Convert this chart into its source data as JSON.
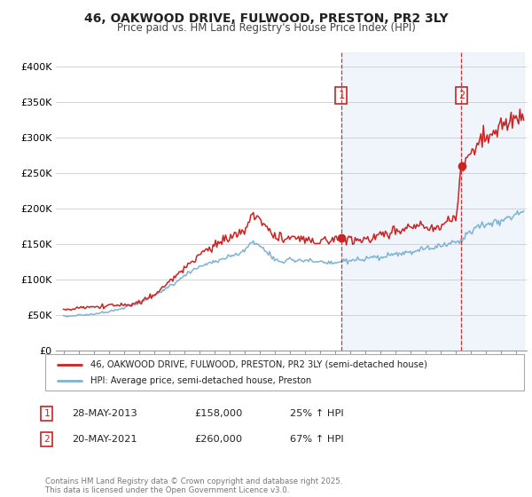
{
  "title1": "46, OAKWOOD DRIVE, FULWOOD, PRESTON, PR2 3LY",
  "title2": "Price paid vs. HM Land Registry's House Price Index (HPI)",
  "legend_line1": "46, OAKWOOD DRIVE, FULWOOD, PRESTON, PR2 3LY (semi-detached house)",
  "legend_line2": "HPI: Average price, semi-detached house, Preston",
  "transaction1_date": "28-MAY-2013",
  "transaction1_price": 158000,
  "transaction1_price_str": "£158,000",
  "transaction1_hpi": "25% ↑ HPI",
  "transaction1_year": 2013.41,
  "transaction1_value": 158000,
  "transaction2_date": "20-MAY-2021",
  "transaction2_price": 260000,
  "transaction2_price_str": "£260,000",
  "transaction2_hpi": "67% ↑ HPI",
  "transaction2_year": 2021.38,
  "transaction2_value": 260000,
  "footnote": "Contains HM Land Registry data © Crown copyright and database right 2025.\nThis data is licensed under the Open Government Licence v3.0.",
  "line_color_property": "#cc2222",
  "line_color_hpi": "#7fb3d3",
  "vline_color": "#cc2222",
  "shade_color": "#ddeeff",
  "ylim_max": 420000,
  "ytick_values": [
    0,
    50000,
    100000,
    150000,
    200000,
    250000,
    300000,
    350000,
    400000
  ],
  "ytick_labels": [
    "£0",
    "£50K",
    "£100K",
    "£150K",
    "£200K",
    "£250K",
    "£300K",
    "£350K",
    "£400K"
  ],
  "hpi_keypoints": [
    [
      1995.0,
      48000
    ],
    [
      1996.0,
      49500
    ],
    [
      1997.0,
      51000
    ],
    [
      1998.0,
      55000
    ],
    [
      1999.0,
      60000
    ],
    [
      2000.0,
      67000
    ],
    [
      2001.0,
      76000
    ],
    [
      2002.0,
      90000
    ],
    [
      2003.0,
      105000
    ],
    [
      2004.0,
      118000
    ],
    [
      2005.0,
      125000
    ],
    [
      2006.0,
      132000
    ],
    [
      2007.0,
      140000
    ],
    [
      2007.5,
      153000
    ],
    [
      2008.0,
      148000
    ],
    [
      2009.0,
      128000
    ],
    [
      2009.5,
      125000
    ],
    [
      2010.0,
      128000
    ],
    [
      2011.0,
      127000
    ],
    [
      2012.0,
      124000
    ],
    [
      2013.0,
      122000
    ],
    [
      2013.41,
      126000
    ],
    [
      2014.0,
      126000
    ],
    [
      2015.0,
      128000
    ],
    [
      2016.0,
      131000
    ],
    [
      2017.0,
      135000
    ],
    [
      2018.0,
      138000
    ],
    [
      2019.0,
      143000
    ],
    [
      2020.0,
      148000
    ],
    [
      2020.5,
      150000
    ],
    [
      2021.0,
      153000
    ],
    [
      2021.38,
      156000
    ],
    [
      2022.0,
      168000
    ],
    [
      2022.5,
      175000
    ],
    [
      2023.0,
      178000
    ],
    [
      2023.5,
      180000
    ],
    [
      2024.0,
      183000
    ],
    [
      2024.5,
      187000
    ],
    [
      2025.0,
      192000
    ],
    [
      2025.4,
      195000
    ]
  ],
  "prop_keypoints": [
    [
      1995.0,
      58000
    ],
    [
      1996.0,
      59000
    ],
    [
      1997.0,
      61000
    ],
    [
      1998.0,
      63000
    ],
    [
      1999.0,
      64000
    ],
    [
      2000.0,
      68000
    ],
    [
      2001.0,
      78000
    ],
    [
      2002.0,
      96000
    ],
    [
      2003.0,
      115000
    ],
    [
      2004.0,
      133000
    ],
    [
      2005.0,
      148000
    ],
    [
      2006.0,
      158000
    ],
    [
      2007.0,
      168000
    ],
    [
      2007.5,
      192000
    ],
    [
      2008.0,
      182000
    ],
    [
      2009.0,
      162000
    ],
    [
      2009.5,
      158000
    ],
    [
      2010.0,
      160000
    ],
    [
      2011.0,
      157000
    ],
    [
      2012.0,
      153000
    ],
    [
      2013.0,
      155000
    ],
    [
      2013.41,
      158000
    ],
    [
      2014.0,
      155000
    ],
    [
      2014.5,
      153000
    ],
    [
      2015.0,
      157000
    ],
    [
      2015.5,
      158000
    ],
    [
      2016.0,
      162000
    ],
    [
      2016.5,
      165000
    ],
    [
      2017.0,
      167000
    ],
    [
      2017.5,
      170000
    ],
    [
      2018.0,
      172000
    ],
    [
      2018.5,
      175000
    ],
    [
      2019.0,
      173000
    ],
    [
      2019.5,
      172000
    ],
    [
      2020.0,
      175000
    ],
    [
      2020.5,
      180000
    ],
    [
      2021.0,
      185000
    ],
    [
      2021.38,
      260000
    ],
    [
      2022.0,
      280000
    ],
    [
      2022.5,
      292000
    ],
    [
      2023.0,
      298000
    ],
    [
      2023.5,
      308000
    ],
    [
      2024.0,
      315000
    ],
    [
      2024.5,
      322000
    ],
    [
      2025.0,
      328000
    ],
    [
      2025.4,
      332000
    ]
  ]
}
